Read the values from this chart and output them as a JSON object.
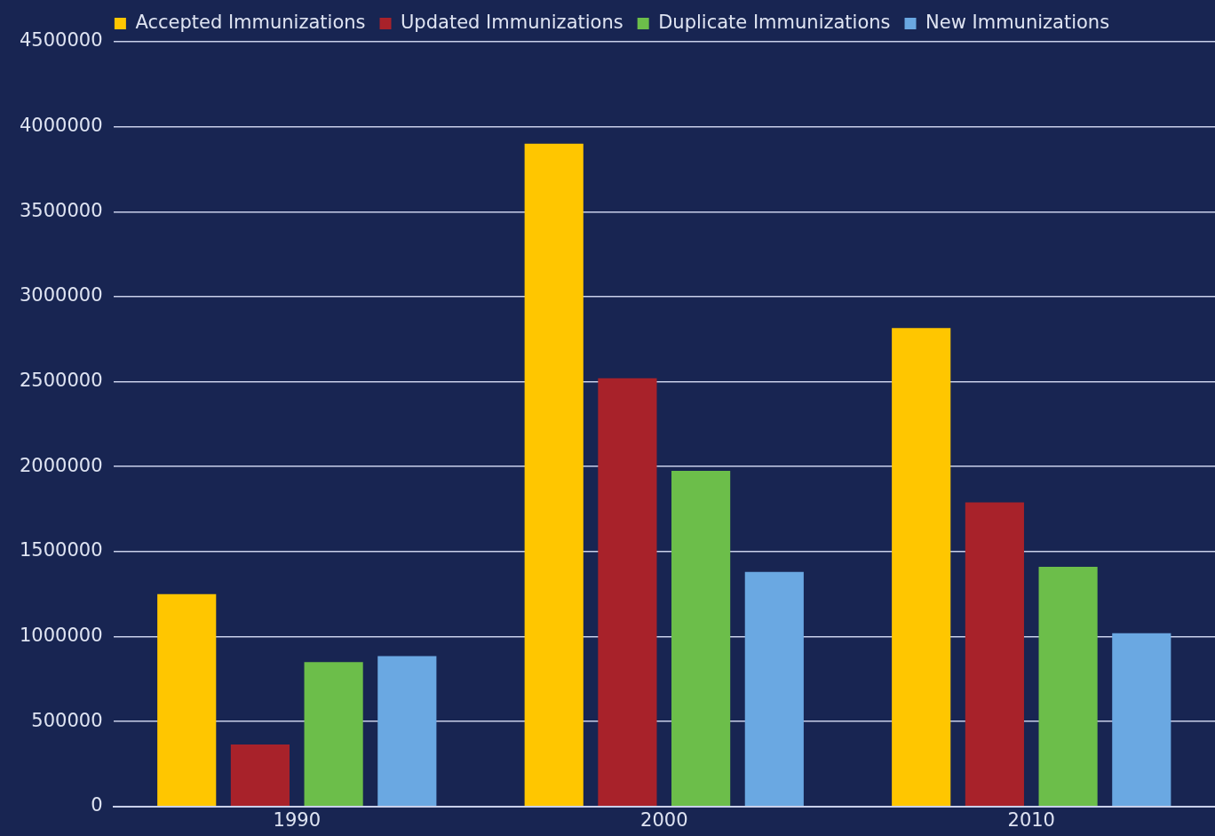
{
  "chart_data": {
    "type": "bar",
    "categories": [
      "1990",
      "2000",
      "2010"
    ],
    "series": [
      {
        "name": "Accepted Immunizations",
        "color": "#ffc600",
        "values": [
          1250000,
          3900000,
          2815000
        ]
      },
      {
        "name": "Updated Immunizations",
        "color": "#a8222a",
        "values": [
          365000,
          2520000,
          1790000
        ]
      },
      {
        "name": "Duplicate Immunizations",
        "color": "#6cbe4a",
        "values": [
          850000,
          1975000,
          1410000
        ]
      },
      {
        "name": "New Immunizations",
        "color": "#6aa8e2",
        "values": [
          885000,
          1380000,
          1020000
        ]
      }
    ],
    "ylim": [
      0,
      4500000
    ],
    "yticks": [
      0,
      500000,
      1000000,
      1500000,
      2000000,
      2500000,
      3000000,
      3500000,
      4000000,
      4500000
    ],
    "grid": "y",
    "legend": "top"
  }
}
